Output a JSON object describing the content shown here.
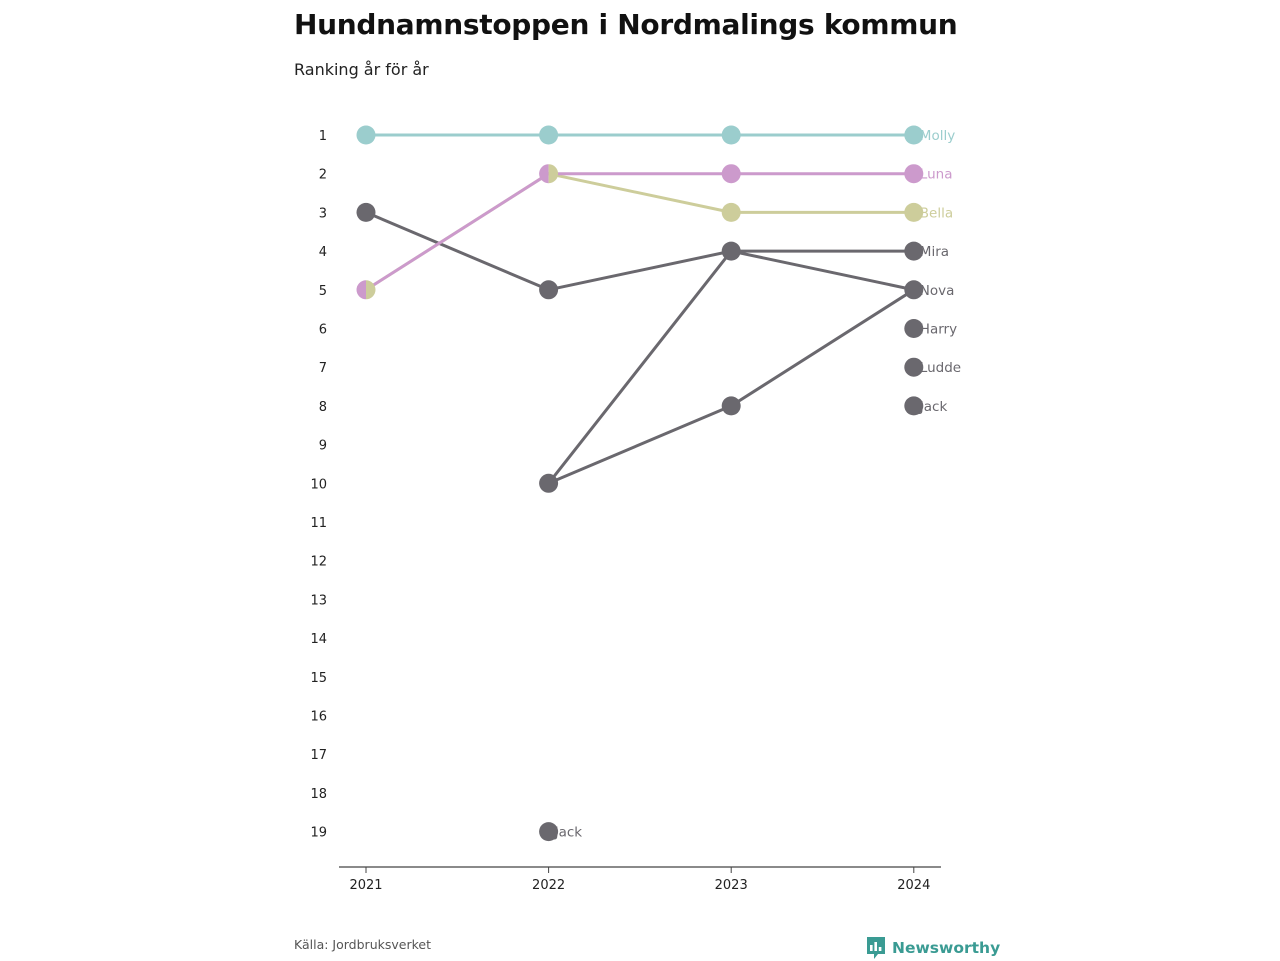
{
  "header": {
    "title": "Hundnamnstoppen i Nordmalings kommun",
    "subtitle": "Ranking år för år"
  },
  "footer": {
    "source": "Källa: Jordbruksverket",
    "logo_text": "Newsworthy",
    "logo_icon": "bar-chart-badge-icon"
  },
  "colors": {
    "Molly": "#9bcdcd",
    "Luna": "#cc9acc",
    "Bella": "#cdcd9b",
    "default": "#6a686e",
    "axis": "#444444",
    "brand": "#3a9b93"
  },
  "chart_data": {
    "type": "line",
    "chart_kind": "bump",
    "x": [
      "2021",
      "2022",
      "2023",
      "2024"
    ],
    "y_axis": {
      "reversed": true,
      "ylim": [
        1,
        19
      ],
      "ticks": [
        "1",
        "2",
        "3",
        "4",
        "5",
        "6",
        "7",
        "8",
        "9",
        "10",
        "11",
        "12",
        "13",
        "14",
        "15",
        "16",
        "17",
        "18",
        "19"
      ]
    },
    "grid": false,
    "series": [
      {
        "name": "Molly",
        "values": [
          1,
          1,
          1,
          1
        ]
      },
      {
        "name": "Luna",
        "values": [
          5,
          2,
          2,
          2
        ]
      },
      {
        "name": "Bella",
        "values": [
          5,
          2,
          3,
          3
        ]
      },
      {
        "name": "Mira",
        "values": [
          null,
          10,
          4,
          4
        ]
      },
      {
        "name": "Nova",
        "values": [
          3,
          5,
          4,
          5
        ]
      },
      {
        "name": "Harry",
        "values": [
          null,
          null,
          null,
          6
        ]
      },
      {
        "name": "Ludde",
        "values": [
          null,
          null,
          null,
          7
        ]
      },
      {
        "name": "Jack",
        "values": [
          null,
          10,
          8,
          5
        ]
      },
      {
        "name": "Jack",
        "values": [
          null,
          19,
          null,
          8
        ]
      }
    ],
    "end_labels": [
      {
        "text": "Molly",
        "year": "2024",
        "rank": 1,
        "series": "Molly"
      },
      {
        "text": "Luna",
        "year": "2024",
        "rank": 2,
        "series": "Luna"
      },
      {
        "text": "Bella",
        "year": "2024",
        "rank": 3,
        "series": "Bella"
      },
      {
        "text": "Mira",
        "year": "2024",
        "rank": 4,
        "series": "default"
      },
      {
        "text": "Nova",
        "year": "2024",
        "rank": 5,
        "series": "default"
      },
      {
        "text": "Harry",
        "year": "2024",
        "rank": 6,
        "series": "default"
      },
      {
        "text": "Ludde",
        "year": "2024",
        "rank": 7,
        "series": "default"
      },
      {
        "text": "Jack",
        "year": "2024",
        "rank": 8,
        "series": "default"
      },
      {
        "text": "Jack",
        "year": "2022",
        "rank": 19,
        "series": "default"
      }
    ]
  }
}
